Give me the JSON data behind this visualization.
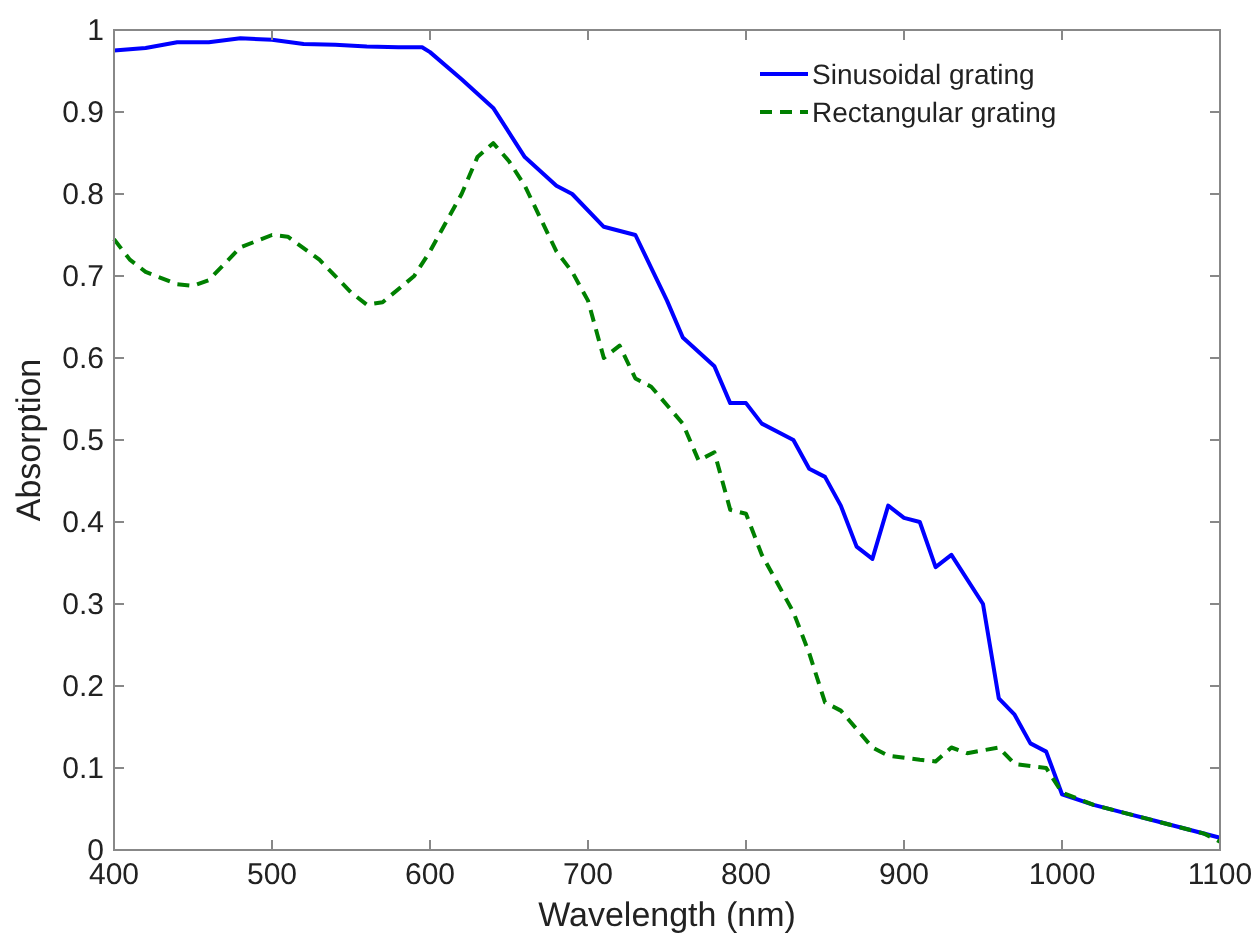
{
  "chart_data": {
    "type": "line",
    "xlabel": "Wavelength (nm)",
    "ylabel": "Absorption",
    "xlim": [
      400,
      1100
    ],
    "xticks": [
      400,
      500,
      600,
      700,
      800,
      900,
      1000,
      1100
    ],
    "ylim": [
      0,
      1
    ],
    "yticks": [
      0,
      0.1,
      0.2,
      0.3,
      0.4,
      0.5,
      0.6,
      0.7,
      0.8,
      0.9,
      1
    ],
    "grid": false,
    "legend": "top right",
    "series": [
      {
        "name": "Sinusoidal grating",
        "color": "#0000ff",
        "line_style": "solid",
        "x": [
          400,
          420,
          440,
          460,
          480,
          500,
          520,
          540,
          560,
          580,
          595,
          600,
          620,
          640,
          660,
          680,
          690,
          710,
          730,
          740,
          750,
          760,
          780,
          790,
          800,
          810,
          830,
          840,
          850,
          860,
          870,
          880,
          890,
          900,
          910,
          920,
          930,
          950,
          960,
          970,
          980,
          990,
          1000,
          1020,
          1040,
          1060,
          1080,
          1100
        ],
        "values": [
          0.975,
          0.978,
          0.985,
          0.985,
          0.99,
          0.988,
          0.983,
          0.982,
          0.98,
          0.979,
          0.979,
          0.973,
          0.94,
          0.905,
          0.845,
          0.81,
          0.8,
          0.76,
          0.75,
          0.71,
          0.67,
          0.625,
          0.59,
          0.545,
          0.545,
          0.52,
          0.5,
          0.465,
          0.455,
          0.42,
          0.37,
          0.355,
          0.42,
          0.405,
          0.4,
          0.345,
          0.36,
          0.3,
          0.185,
          0.165,
          0.13,
          0.12,
          0.068,
          0.055,
          0.045,
          0.035,
          0.025,
          0.015
        ]
      },
      {
        "name": "Rectangular grating",
        "color": "#008000",
        "line_style": "dashed",
        "x": [
          400,
          410,
          420,
          440,
          450,
          460,
          480,
          500,
          510,
          530,
          550,
          560,
          570,
          590,
          600,
          620,
          630,
          640,
          650,
          660,
          680,
          690,
          700,
          710,
          720,
          730,
          740,
          760,
          770,
          780,
          790,
          800,
          810,
          830,
          840,
          850,
          860,
          880,
          890,
          910,
          920,
          930,
          940,
          960,
          970,
          990,
          1000,
          1020,
          1040,
          1060,
          1080,
          1090,
          1100
        ],
        "values": [
          0.745,
          0.72,
          0.705,
          0.69,
          0.688,
          0.695,
          0.735,
          0.75,
          0.748,
          0.72,
          0.68,
          0.665,
          0.668,
          0.7,
          0.73,
          0.8,
          0.845,
          0.862,
          0.84,
          0.81,
          0.73,
          0.705,
          0.67,
          0.6,
          0.615,
          0.575,
          0.565,
          0.52,
          0.475,
          0.485,
          0.415,
          0.41,
          0.36,
          0.29,
          0.24,
          0.18,
          0.17,
          0.125,
          0.115,
          0.11,
          0.108,
          0.125,
          0.118,
          0.125,
          0.105,
          0.1,
          0.07,
          0.055,
          0.045,
          0.035,
          0.025,
          0.02,
          0.01
        ]
      }
    ]
  }
}
